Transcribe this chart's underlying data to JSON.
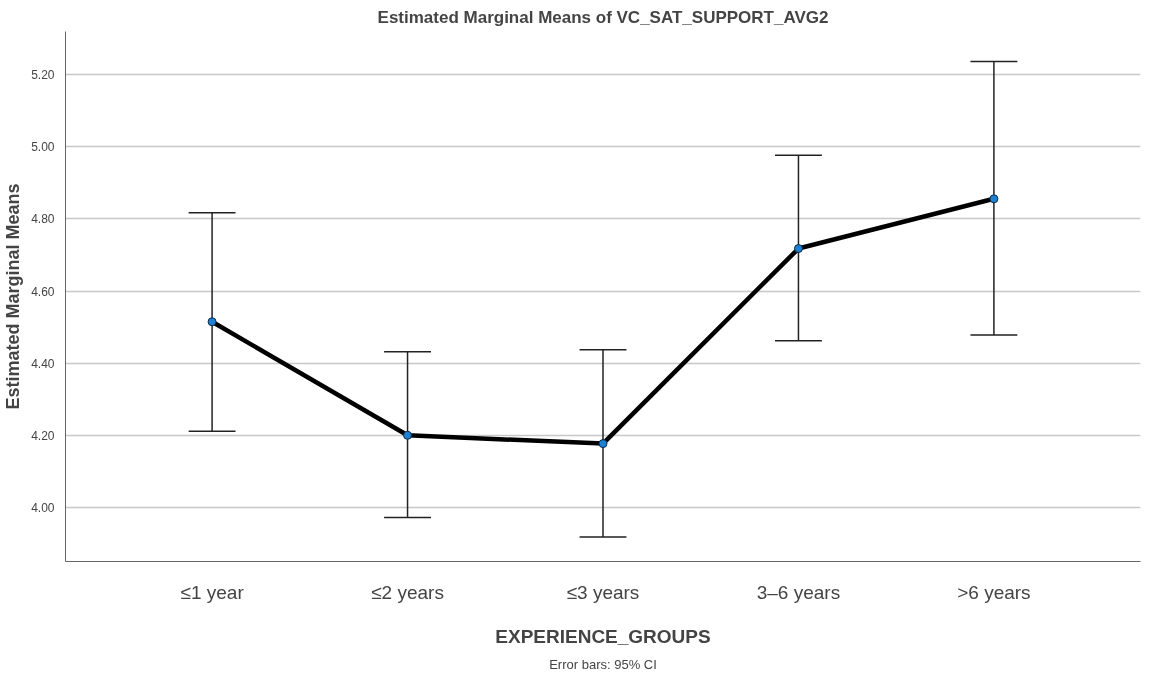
{
  "chart_data": {
    "type": "line",
    "title": "Estimated Marginal Means of VC_SAT_SUPPORT_AVG2",
    "xlabel": "EXPERIENCE_GROUPS",
    "ylabel": "Estimated Marginal Means",
    "categories": [
      "≤1 year",
      "≤2 years",
      "≤3 years",
      "3–6 years",
      ">6 years"
    ],
    "values": [
      4.515,
      4.2,
      4.177,
      4.718,
      4.856
    ],
    "errors": [
      [
        4.211,
        4.817
      ],
      [
        3.972,
        4.432
      ],
      [
        3.918,
        4.437
      ],
      [
        4.462,
        4.977
      ],
      [
        4.478,
        5.237
      ]
    ],
    "color": "#000000",
    "ylim": [
      3.85,
      5.32
    ],
    "yticks": [
      {
        "value": 4.0,
        "label": "4.00"
      },
      {
        "value": 4.2,
        "label": "4.20"
      },
      {
        "value": 4.4,
        "label": "4.40"
      },
      {
        "value": 4.6,
        "label": "4.60"
      },
      {
        "value": 4.8,
        "label": "4.80"
      },
      {
        "value": 5.0,
        "label": "5.00"
      },
      {
        "value": 5.2,
        "label": "5.20"
      }
    ],
    "grid": "y",
    "marker": "circle",
    "line_style": "solid",
    "annotations": [
      "Error bars: 95% CI"
    ]
  }
}
